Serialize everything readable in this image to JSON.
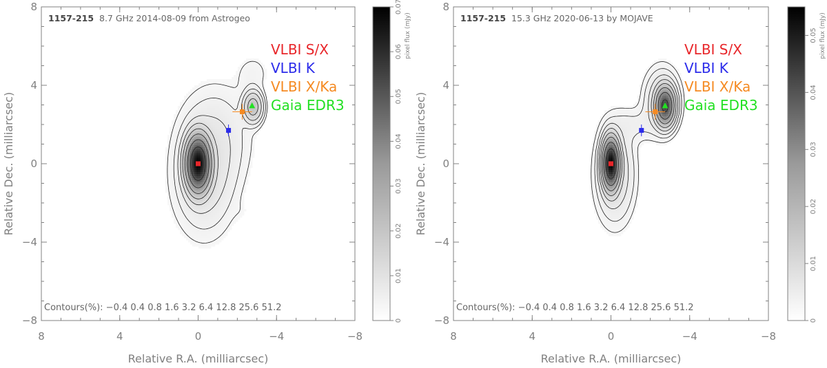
{
  "chart_data": [
    {
      "type": "heatmap",
      "source": "1157-215",
      "subtitle": "8.7 GHz 2014-08-09 from Astrogeo",
      "xlabel": "Relative R.A. (milliarcsec)",
      "ylabel": "Relative Dec. (milliarcsec)",
      "xlim": [
        8,
        -8
      ],
      "ylim": [
        -8,
        8
      ],
      "xticks": [
        "8",
        "4",
        "0",
        "−4",
        "−8"
      ],
      "yticks": [
        "8",
        "4",
        "0",
        "−4",
        "−8"
      ],
      "xtick_values": [
        8,
        4,
        0,
        -4,
        -8
      ],
      "ytick_values": [
        8,
        4,
        0,
        -4,
        -8
      ],
      "colorbar": {
        "label": "pixel flux (mJy)",
        "min": 0,
        "max": 0.07,
        "ticks": [
          "0",
          "0.01",
          "0.02",
          "0.03",
          "0.04",
          "0.05",
          "0.06",
          "0.07"
        ],
        "tick_values": [
          0,
          0.01,
          0.02,
          0.03,
          0.04,
          0.05,
          0.06,
          0.07
        ]
      },
      "contours_text": "Contours(%): −0.4 0.4 0.8 1.6 3.2 6.4 12.8 25.6 51.2",
      "components": [
        {
          "x": 0,
          "y": 0,
          "sx": 0.32,
          "sy": 0.72,
          "peak": 1.0
        },
        {
          "x": -2.8,
          "y": 2.9,
          "sx": 0.28,
          "sy": 0.45,
          "peak": 0.095
        },
        {
          "x": -1.0,
          "y": 1.5,
          "sx": 1.1,
          "sy": 1.6,
          "peak": 0.012
        },
        {
          "x": -0.3,
          "y": -0.6,
          "sx": 0.95,
          "sy": 1.8,
          "peak": 0.025
        },
        {
          "x": -2.8,
          "y": 4.6,
          "sx": 0.55,
          "sy": 0.65,
          "peak": 0.006
        },
        {
          "x": -2.3,
          "y": -2.5,
          "sx": 0.3,
          "sy": 0.4,
          "peak": 0.0015
        }
      ],
      "markers": [
        {
          "name": "VLBI S/X",
          "x": 0,
          "y": 0,
          "color": "#e8262a",
          "shape": "square"
        },
        {
          "name": "VLBI K",
          "x": -1.55,
          "y": 1.7,
          "color": "#2b2bea",
          "shape": "square",
          "xerr": 0.08,
          "yerr": 0.3
        },
        {
          "name": "VLBI X/Ka",
          "x": -2.25,
          "y": 2.65,
          "color": "#f58a22",
          "shape": "square",
          "xerr": 0.5,
          "yerr": 0.4
        },
        {
          "name": "Gaia EDR3",
          "x": -2.75,
          "y": 2.95,
          "color": "#22e022",
          "shape": "triangle"
        }
      ],
      "legend": [
        "VLBI S/X",
        "VLBI K",
        "VLBI X/Ka",
        "Gaia EDR3"
      ]
    },
    {
      "type": "heatmap",
      "source": "1157-215",
      "subtitle": "15.3 GHz 2020-06-13 by MOJAVE",
      "xlabel": "Relative R.A. (milliarcsec)",
      "ylabel": "Relative Dec. (milliarcsec)",
      "xlim": [
        8,
        -8
      ],
      "ylim": [
        -8,
        8
      ],
      "xticks": [
        "8",
        "4",
        "0",
        "−4",
        "−8"
      ],
      "yticks": [
        "8",
        "4",
        "0",
        "−4",
        "−8"
      ],
      "xtick_values": [
        8,
        4,
        0,
        -4,
        -8
      ],
      "ytick_values": [
        8,
        4,
        0,
        -4,
        -8
      ],
      "colorbar": {
        "label": "pixel flux (mJy)",
        "min": 0,
        "max": 0.055,
        "ticks": [
          "0",
          "0.01",
          "0.02",
          "0.03",
          "0.04",
          "0.05"
        ],
        "tick_values": [
          0,
          0.01,
          0.02,
          0.03,
          0.04,
          0.05
        ]
      },
      "contours_text": "Contours(%): −0.4 0.4 0.8 1.6 3.2 6.4 12.8 25.6 51.2",
      "components": [
        {
          "x": 0,
          "y": 0,
          "sx": 0.22,
          "sy": 0.65,
          "peak": 1.0
        },
        {
          "x": -2.75,
          "y": 2.95,
          "sx": 0.25,
          "sy": 0.5,
          "peak": 0.6
        },
        {
          "x": -0.2,
          "y": -0.5,
          "sx": 0.6,
          "sy": 1.5,
          "peak": 0.03
        },
        {
          "x": -1.2,
          "y": 2.0,
          "sx": 0.8,
          "sy": 0.55,
          "peak": 0.008
        },
        {
          "x": -2.6,
          "y": 3.2,
          "sx": 0.55,
          "sy": 1.0,
          "peak": 0.03
        },
        {
          "x": 2.7,
          "y": -3.0,
          "sx": 0.2,
          "sy": 0.3,
          "peak": 0.0015
        }
      ],
      "markers": [
        {
          "name": "VLBI S/X",
          "x": 0,
          "y": 0,
          "color": "#e8262a",
          "shape": "square"
        },
        {
          "name": "VLBI K",
          "x": -1.55,
          "y": 1.7,
          "color": "#2b2bea",
          "shape": "square",
          "xerr": 0.08,
          "yerr": 0.3
        },
        {
          "name": "VLBI X/Ka",
          "x": -2.25,
          "y": 2.65,
          "color": "#f58a22",
          "shape": "square",
          "xerr": 0.5,
          "yerr": 0.4
        },
        {
          "name": "Gaia EDR3",
          "x": -2.75,
          "y": 2.95,
          "color": "#22e022",
          "shape": "triangle"
        }
      ],
      "legend": [
        "VLBI S/X",
        "VLBI K",
        "VLBI X/Ka",
        "Gaia EDR3"
      ]
    }
  ],
  "contour_levels_percent": [
    0.4,
    0.8,
    1.6,
    3.2,
    6.4,
    12.8,
    25.6,
    51.2
  ]
}
